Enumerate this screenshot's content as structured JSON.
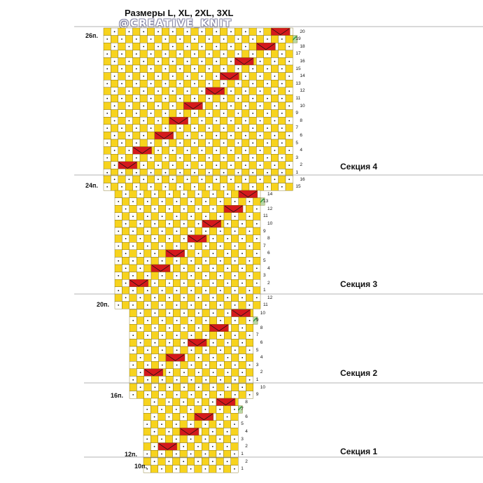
{
  "header": {
    "title": "Размеры L, XL, 2XL, 3XL",
    "brand": "@CREATIVE_KNIT"
  },
  "sections": [
    {
      "label": "Секция 4"
    },
    {
      "label": "Секция 3"
    },
    {
      "label": "Секция 2"
    },
    {
      "label": "Секция 1"
    }
  ],
  "stitch_counts": [
    {
      "label": "26п."
    },
    {
      "label": "24п."
    },
    {
      "label": "20п."
    },
    {
      "label": "16п."
    },
    {
      "label": "12п."
    },
    {
      "label": "10п."
    }
  ],
  "colors": {
    "knit_cell": "#f7d31d",
    "cross_cell": "#d4191c",
    "cable_green": "#2a9a3c",
    "grid_line": "#7a6a10",
    "dot": "#111111",
    "divider": "#9a9a9a"
  },
  "legend_symbols": [
    "dot-cell",
    "red-cross-cell",
    "green-slash-cell"
  ]
}
